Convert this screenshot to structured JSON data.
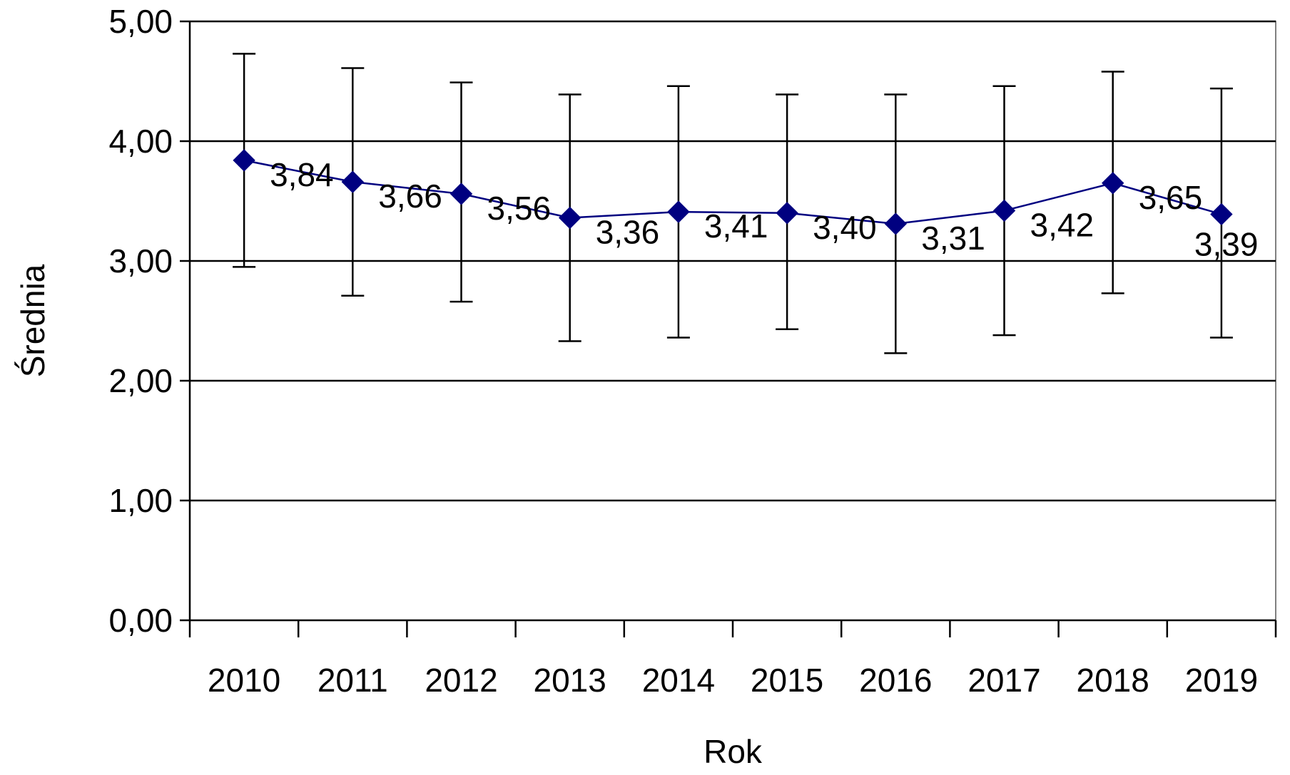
{
  "chart_data": {
    "type": "line",
    "title": "",
    "xlabel": "Rok",
    "ylabel": "Średnia",
    "ylim": [
      0,
      5
    ],
    "yticks": [
      "0,00",
      "1,00",
      "2,00",
      "3,00",
      "4,00",
      "5,00"
    ],
    "categories": [
      "2010",
      "2011",
      "2012",
      "2013",
      "2014",
      "2015",
      "2016",
      "2017",
      "2018",
      "2019"
    ],
    "series": [
      {
        "values": [
          3.84,
          3.66,
          3.56,
          3.36,
          3.41,
          3.4,
          3.31,
          3.42,
          3.65,
          3.39
        ],
        "labels": [
          "3,84",
          "3,66",
          "3,56",
          "3,36",
          "3,41",
          "3,40",
          "3,31",
          "3,42",
          "3,65",
          "3,39"
        ],
        "error_low": [
          2.95,
          2.71,
          2.66,
          2.33,
          2.36,
          2.43,
          2.23,
          2.38,
          2.73,
          2.36
        ],
        "error_high": [
          4.73,
          4.61,
          4.49,
          4.39,
          4.46,
          4.39,
          4.39,
          4.46,
          4.58,
          4.44
        ],
        "color": "#000080",
        "marker": "diamond"
      }
    ],
    "grid": true,
    "legend": "none",
    "error_bar_color": "#000000",
    "plot_border_color": "#808080"
  }
}
